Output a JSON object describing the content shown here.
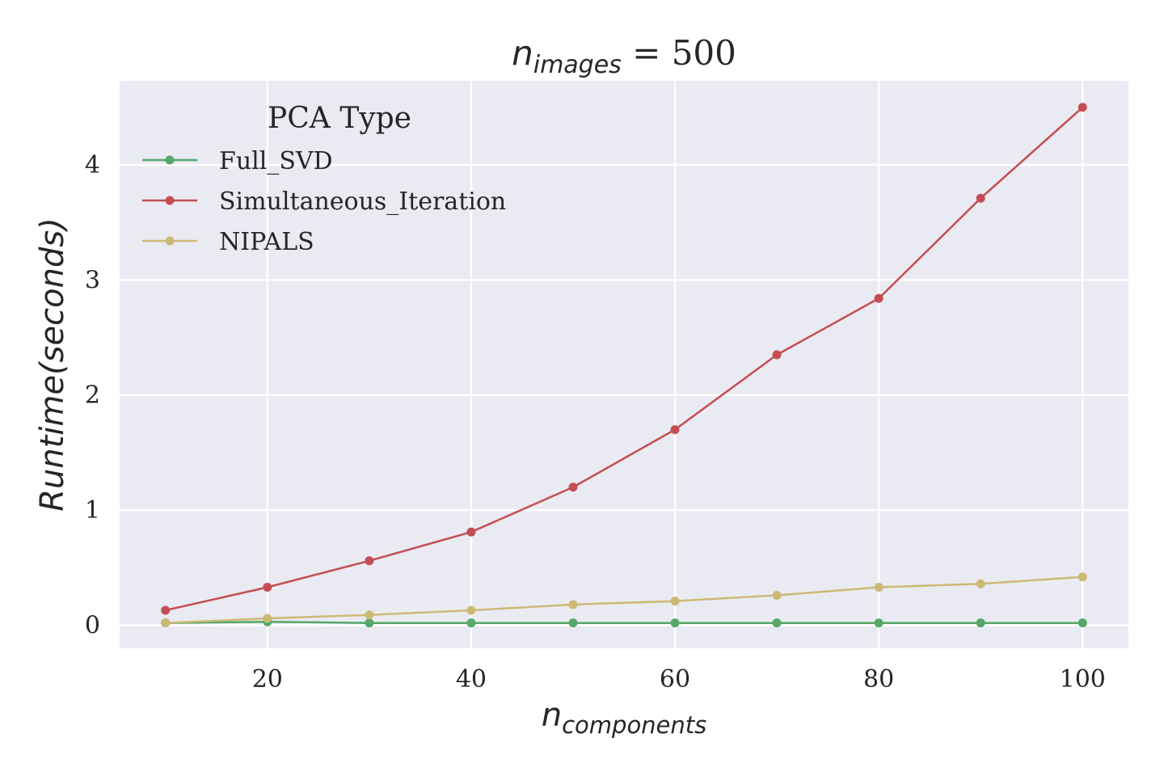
{
  "chart_data": {
    "type": "line",
    "title": {
      "var": "n",
      "sub": "images",
      "rest": " = 500"
    },
    "xlabel": {
      "var": "n",
      "sub": "components"
    },
    "ylabel": {
      "text": "Runtime",
      "paren": "(seconds)"
    },
    "x": [
      10,
      20,
      30,
      40,
      50,
      60,
      70,
      80,
      90,
      100
    ],
    "xlim": [
      5.5,
      104.5
    ],
    "ylim": [
      -0.2,
      4.73
    ],
    "xticks": [
      "20",
      "40",
      "60",
      "80",
      "100"
    ],
    "yticks": [
      "0",
      "1",
      "2",
      "3",
      "4"
    ],
    "grid": true,
    "legend": {
      "title": "PCA Type",
      "position": "top-left"
    },
    "series": [
      {
        "name": "Full_SVD",
        "color": "#55a868",
        "values": [
          0.02,
          0.03,
          0.02,
          0.02,
          0.02,
          0.02,
          0.02,
          0.02,
          0.02,
          0.02
        ]
      },
      {
        "name": "Simultaneous_Iteration",
        "color": "#c44e52",
        "values": [
          0.13,
          0.33,
          0.56,
          0.81,
          1.2,
          1.7,
          2.35,
          2.84,
          3.71,
          4.5
        ]
      },
      {
        "name": "NIPALS",
        "color": "#ccb974",
        "values": [
          0.02,
          0.06,
          0.09,
          0.13,
          0.18,
          0.21,
          0.26,
          0.33,
          0.36,
          0.42
        ]
      }
    ]
  }
}
